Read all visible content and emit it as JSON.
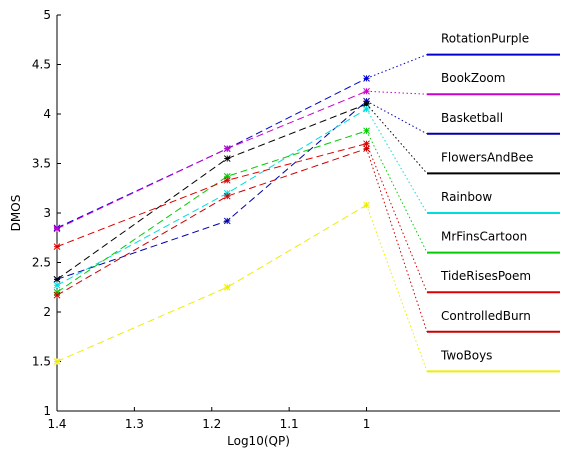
{
  "chart_data": {
    "type": "line",
    "xlabel": "Log10(QP)",
    "ylabel": "DMOS",
    "x": [
      1.4,
      1.18,
      1
    ],
    "xlim": [
      1.4,
      0.75
    ],
    "x_reversed": true,
    "xticks": [
      "1.4",
      "1.3",
      "1.2",
      "1.1",
      "1"
    ],
    "xtick_values": [
      1.4,
      1.3,
      1.2,
      1.1,
      1.0
    ],
    "ylim": [
      1,
      5
    ],
    "yticks": [
      "1",
      "1.5",
      "2",
      "2.5",
      "3",
      "3.5",
      "4",
      "4.5",
      "5"
    ],
    "ytick_values": [
      1,
      1.5,
      2,
      2.5,
      3,
      3.5,
      4,
      4.5,
      5
    ],
    "grid": false,
    "legend_placement": "right, outside data region, each entry linked to its series endpoint by a dotted line",
    "series": [
      {
        "name": "RotationPurple",
        "color": "#0000cc",
        "values": [
          2.85,
          3.65,
          4.36
        ],
        "legend_y": 4.6
      },
      {
        "name": "BookZoom",
        "color": "#cc00cc",
        "values": [
          2.84,
          3.65,
          4.23
        ],
        "legend_y": 4.2
      },
      {
        "name": "Basketball",
        "color": "#0000aa",
        "values": [
          2.33,
          2.92,
          4.13
        ],
        "legend_y": 3.8
      },
      {
        "name": "FlowersAndBee",
        "color": "#000000",
        "values": [
          2.33,
          3.55,
          4.1
        ],
        "legend_y": 3.4
      },
      {
        "name": "Rainbow",
        "color": "#00dddd",
        "values": [
          2.27,
          3.2,
          4.05
        ],
        "legend_y": 3.0
      },
      {
        "name": "MrFinsCartoon",
        "color": "#00cc00",
        "values": [
          2.2,
          3.37,
          3.83
        ],
        "legend_y": 2.6
      },
      {
        "name": "TideRisesPoem",
        "color": "#dd0000",
        "values": [
          2.66,
          3.33,
          3.7
        ],
        "legend_y": 2.2
      },
      {
        "name": "ControlledBurn",
        "color": "#cc0000",
        "values": [
          2.17,
          3.17,
          3.65
        ],
        "legend_y": 1.8
      },
      {
        "name": "TwoBoys",
        "color": "#eeee00",
        "values": [
          1.5,
          2.25,
          3.08
        ],
        "legend_y": 1.4
      }
    ]
  }
}
